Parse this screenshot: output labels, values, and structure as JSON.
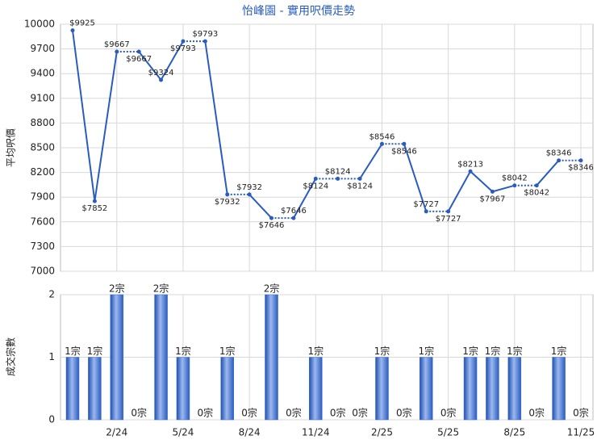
{
  "chart_data": [
    {
      "type": "line",
      "title": "怡峰園 - 實用呎價走勢",
      "ylabel": "平均呎價",
      "color": "#2a5cbf",
      "values": [
        9925,
        7852,
        9667,
        9667,
        9324,
        9793,
        9793,
        7932,
        7932,
        7646,
        7646,
        8124,
        8124,
        8124,
        8546,
        8546,
        7727,
        7727,
        8213,
        7967,
        8042,
        8042,
        8346,
        8346
      ],
      "value_labels": [
        "$9925",
        "$7852",
        "$9667",
        "$9667",
        "$9324",
        "$9793",
        "$9793",
        "$7932",
        "$7932",
        "$7646",
        "$7646",
        "$8124",
        "$8124",
        "$8124",
        "$8546",
        "$8546",
        "$7727",
        "$7727",
        "$8213",
        "$7967",
        "$8042",
        "$8042",
        "$8346",
        "$8346"
      ],
      "ylim": [
        7000,
        10000
      ],
      "yticks": [
        7000,
        7300,
        7600,
        7900,
        8200,
        8500,
        8800,
        9100,
        9400,
        9700,
        10000
      ],
      "grid": true
    },
    {
      "type": "bar",
      "ylabel": "成交宗數",
      "color": "#3b6fd4",
      "categories": [
        null,
        null,
        "2/24",
        null,
        null,
        "5/24",
        null,
        null,
        "8/24",
        null,
        null,
        "11/24",
        null,
        null,
        "2/25",
        null,
        null,
        "5/25",
        null,
        null,
        "8/25",
        null,
        null,
        "11/25"
      ],
      "values": [
        1,
        1,
        2,
        0,
        2,
        1,
        0,
        1,
        0,
        2,
        0,
        1,
        0,
        0,
        1,
        0,
        1,
        0,
        1,
        1,
        1,
        0,
        1,
        0
      ],
      "value_labels": [
        "1宗",
        "1宗",
        "2宗",
        "0宗",
        "2宗",
        "1宗",
        "0宗",
        "1宗",
        "0宗",
        "2宗",
        "0宗",
        "1宗",
        "0宗",
        "0宗",
        "1宗",
        "0宗",
        "1宗",
        "0宗",
        "1宗",
        "1宗",
        "1宗",
        "0宗",
        "1宗",
        "0宗"
      ],
      "ylim": [
        0,
        2
      ],
      "yticks": [
        0,
        1,
        2
      ],
      "grid": true
    }
  ]
}
